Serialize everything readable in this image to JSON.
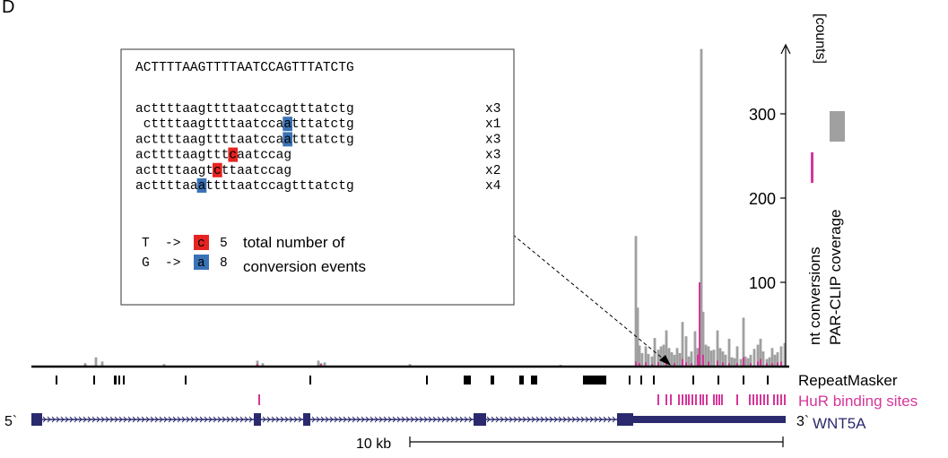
{
  "panel_label": "D",
  "colors": {
    "coverage": "#a0a0a0",
    "conversions": "#d6369a",
    "thymine_to_c": "#e52421",
    "guanine_to_a": "#3a72b6",
    "gene": "#2b2a6e",
    "axis": "#000000"
  },
  "inset": {
    "reference": "ACTTTTAAGTTTTAATCCAGTTTATCTG",
    "reads": [
      {
        "pre": "acttttaagttttaatccagtttatctg",
        "mut": "",
        "post": "",
        "mut_type": "",
        "count": "x3"
      },
      {
        "pre": " cttttaagttttaatcca",
        "mut": "a",
        "post": "tttatctg",
        "mut_type": "G",
        "count": "x1"
      },
      {
        "pre": "acttttaagttttaatcca",
        "mut": "a",
        "post": "tttatctg",
        "mut_type": "G",
        "count": "x3"
      },
      {
        "pre": "acttttaagttt",
        "mut": "c",
        "post": "aatccag",
        "mut_type": "T",
        "count": "x3"
      },
      {
        "pre": "acttttaagt",
        "mut": "c",
        "post": "ttaatccag",
        "mut_type": "T",
        "count": "x2"
      },
      {
        "pre": "acttttaa",
        "mut": "a",
        "post": "ttttaatccagtttatctg",
        "mut_type": "G",
        "count": "x4"
      }
    ],
    "legend": [
      {
        "from": "T",
        "arrow": "->",
        "to": "c",
        "count": "5"
      },
      {
        "from": "G",
        "arrow": "->",
        "to": "a",
        "count": "8"
      }
    ],
    "legend_text": [
      "total number of",
      "conversion events"
    ]
  },
  "y_axis": {
    "unit": "[counts]",
    "ticks": [
      100,
      200,
      300
    ],
    "max": 380
  },
  "legend_labels": {
    "conversions": "nt conversions",
    "coverage": "PAR-CLIP coverage"
  },
  "tracks": {
    "repeatmasker": "RepeatMasker",
    "hur_sites": "HuR binding sites",
    "gene": "WNT5A"
  },
  "strand": {
    "five": "5`",
    "three": "3`"
  },
  "scale_bar": "10 kb",
  "chart_data": {
    "type": "bar",
    "title": "",
    "xlabel": "",
    "ylabel": "[counts]",
    "ylim": [
      0,
      380
    ],
    "series": [
      {
        "name": "PAR-CLIP coverage",
        "points": [
          [
            95,
            4
          ],
          [
            107,
            11
          ],
          [
            114,
            6
          ],
          [
            183,
            3
          ],
          [
            287,
            7
          ],
          [
            293,
            4
          ],
          [
            355,
            7
          ],
          [
            358,
            4
          ],
          [
            362,
            5
          ],
          [
            457,
            3
          ],
          [
            625,
            2
          ],
          [
            709,
            155
          ],
          [
            711,
            70
          ],
          [
            713,
            25
          ],
          [
            716,
            16
          ],
          [
            720,
            24
          ],
          [
            723,
            15
          ],
          [
            727,
            12
          ],
          [
            730,
            34
          ],
          [
            734,
            20
          ],
          [
            737,
            24
          ],
          [
            740,
            26
          ],
          [
            743,
            43
          ],
          [
            746,
            22
          ],
          [
            749,
            17
          ],
          [
            752,
            14
          ],
          [
            755,
            22
          ],
          [
            758,
            16
          ],
          [
            761,
            53
          ],
          [
            765,
            36
          ],
          [
            768,
            12
          ],
          [
            771,
            18
          ],
          [
            775,
            42
          ],
          [
            778,
            22
          ],
          [
            781,
            46
          ],
          [
            782,
            377
          ],
          [
            784,
            65
          ],
          [
            787,
            26
          ],
          [
            790,
            24
          ],
          [
            793,
            19
          ],
          [
            796,
            20
          ],
          [
            800,
            43
          ],
          [
            803,
            22
          ],
          [
            806,
            18
          ],
          [
            809,
            14
          ],
          [
            813,
            33
          ],
          [
            816,
            11
          ],
          [
            819,
            10
          ],
          [
            822,
            24
          ],
          [
            826,
            9
          ],
          [
            829,
            58
          ],
          [
            831,
            12
          ],
          [
            834,
            10
          ],
          [
            837,
            14
          ],
          [
            841,
            21
          ],
          [
            845,
            26
          ],
          [
            848,
            33
          ],
          [
            851,
            18
          ],
          [
            855,
            9
          ],
          [
            858,
            11
          ],
          [
            861,
            22
          ],
          [
            864,
            14
          ],
          [
            867,
            17
          ],
          [
            871,
            24
          ],
          [
            875,
            28
          ]
        ]
      },
      {
        "name": "nt conversions",
        "points": [
          [
            95,
            2
          ],
          [
            287,
            3
          ],
          [
            358,
            3
          ],
          [
            709,
            6
          ],
          [
            713,
            4
          ],
          [
            720,
            5
          ],
          [
            727,
            3
          ],
          [
            734,
            5
          ],
          [
            743,
            7
          ],
          [
            752,
            4
          ],
          [
            761,
            9
          ],
          [
            765,
            5
          ],
          [
            771,
            4
          ],
          [
            778,
            14
          ],
          [
            780,
            100
          ],
          [
            784,
            14
          ],
          [
            790,
            6
          ],
          [
            800,
            7
          ],
          [
            806,
            5
          ],
          [
            813,
            4
          ],
          [
            822,
            4
          ],
          [
            829,
            11
          ],
          [
            837,
            4
          ],
          [
            845,
            6
          ],
          [
            848,
            9
          ],
          [
            855,
            4
          ],
          [
            861,
            4
          ],
          [
            867,
            5
          ],
          [
            871,
            6
          ]
        ]
      }
    ]
  }
}
